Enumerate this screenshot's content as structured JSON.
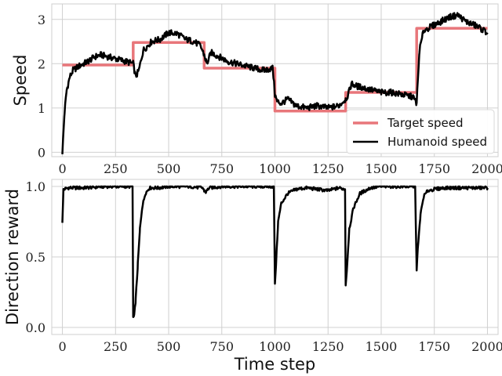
{
  "chart_data": [
    {
      "type": "line",
      "title": "",
      "xlabel": "",
      "ylabel": "Speed",
      "xlim": [
        -50,
        2050
      ],
      "ylim": [
        -0.1,
        3.35
      ],
      "x_ticks": [
        0,
        250,
        500,
        750,
        1000,
        1250,
        1500,
        1750,
        2000
      ],
      "x_tick_labels": [
        "0",
        "250",
        "500",
        "750",
        "1000",
        "1250",
        "1500",
        "1750",
        "2000"
      ],
      "y_ticks": [
        0,
        1,
        2,
        3
      ],
      "y_tick_labels": [
        "0",
        "1",
        "2",
        "3"
      ],
      "grid": true,
      "legend": {
        "placement": "bottom-right",
        "entries": [
          "Target speed",
          "Humanoid speed"
        ]
      },
      "series": [
        {
          "name": "Target speed",
          "color": "#e8767a",
          "style": "step",
          "x": [
            0,
            333,
            333,
            667,
            667,
            1000,
            1000,
            1333,
            1333,
            1667,
            1667,
            2000
          ],
          "y": [
            1.97,
            1.97,
            2.48,
            2.48,
            1.9,
            1.9,
            0.93,
            0.93,
            1.35,
            1.35,
            2.8,
            2.8
          ]
        },
        {
          "name": "Humanoid speed",
          "color": "#000000",
          "x": [
            0,
            10,
            20,
            35,
            50,
            80,
            120,
            150,
            180,
            220,
            260,
            300,
            333,
            345,
            360,
            380,
            420,
            460,
            500,
            540,
            580,
            620,
            650,
            667,
            680,
            700,
            740,
            780,
            820,
            860,
            900,
            950,
            990,
            1000,
            1010,
            1030,
            1060,
            1100,
            1150,
            1200,
            1250,
            1300,
            1333,
            1345,
            1360,
            1380,
            1420,
            1460,
            1500,
            1550,
            1600,
            1650,
            1667,
            1680,
            1700,
            1740,
            1780,
            1820,
            1860,
            1900,
            1950,
            2000
          ],
          "y": [
            0.0,
            0.9,
            1.4,
            1.7,
            1.85,
            1.95,
            2.05,
            2.15,
            2.2,
            2.15,
            2.1,
            2.05,
            2.0,
            1.7,
            1.85,
            2.3,
            2.5,
            2.55,
            2.7,
            2.68,
            2.55,
            2.5,
            2.4,
            2.2,
            2.0,
            2.25,
            2.15,
            2.05,
            2.0,
            1.95,
            1.9,
            1.85,
            1.9,
            1.3,
            1.15,
            1.1,
            1.2,
            1.05,
            1.0,
            1.05,
            1.0,
            1.05,
            1.2,
            1.3,
            1.55,
            1.5,
            1.45,
            1.4,
            1.35,
            1.35,
            1.3,
            1.25,
            1.1,
            2.3,
            2.75,
            2.85,
            2.95,
            3.05,
            3.1,
            2.95,
            2.85,
            2.7
          ]
        }
      ]
    },
    {
      "type": "line",
      "title": "",
      "xlabel": "Time step",
      "ylabel": "Direction reward",
      "xlim": [
        -50,
        2050
      ],
      "ylim": [
        -0.05,
        1.05
      ],
      "x_ticks": [
        0,
        250,
        500,
        750,
        1000,
        1250,
        1500,
        1750,
        2000
      ],
      "x_tick_labels": [
        "0",
        "250",
        "500",
        "750",
        "1000",
        "1250",
        "1500",
        "1750",
        "2000"
      ],
      "y_ticks": [
        0.0,
        0.5,
        1.0
      ],
      "y_tick_labels": [
        "0.0",
        "0.5",
        "1.0"
      ],
      "grid": true,
      "series": [
        {
          "color": "#000000",
          "x": [
            0,
            5,
            30,
            100,
            200,
            300,
            330,
            333,
            338,
            345,
            355,
            365,
            375,
            390,
            410,
            450,
            500,
            600,
            660,
            667,
            675,
            690,
            750,
            850,
            950,
            995,
            1000,
            1005,
            1015,
            1030,
            1060,
            1100,
            1150,
            1200,
            1250,
            1300,
            1330,
            1333,
            1338,
            1350,
            1370,
            1400,
            1450,
            1500,
            1550,
            1600,
            1660,
            1667,
            1672,
            1685,
            1700,
            1720,
            1750,
            1800,
            1900,
            2000
          ],
          "y": [
            0.75,
            0.98,
            0.99,
            0.99,
            1.0,
            1.0,
            1.0,
            0.07,
            0.08,
            0.2,
            0.45,
            0.7,
            0.85,
            0.95,
            0.99,
            0.99,
            1.0,
            1.0,
            0.99,
            0.97,
            0.96,
            0.99,
            1.0,
            1.0,
            1.0,
            1.0,
            0.3,
            0.45,
            0.75,
            0.88,
            0.95,
            0.98,
            0.99,
            0.98,
            0.97,
            0.99,
            0.98,
            0.3,
            0.4,
            0.7,
            0.85,
            0.95,
            0.99,
            1.0,
            1.0,
            1.0,
            1.0,
            0.4,
            0.55,
            0.8,
            0.93,
            0.97,
            0.98,
            0.99,
            0.99,
            0.99
          ]
        }
      ]
    }
  ]
}
